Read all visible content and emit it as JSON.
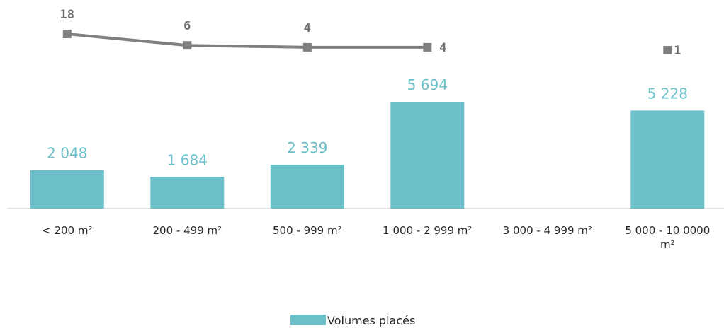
{
  "chart_data": {
    "type": "bar",
    "categories": [
      "< 200 m²",
      "200 - 499 m²",
      "500 - 999 m²",
      "1 000 - 2 999 m²",
      "3 000 - 4 999 m²",
      "5 000 - 10 0000 m²"
    ],
    "series": [
      {
        "name": "Volumes placés",
        "type": "bar",
        "values": [
          2048,
          1684,
          2339,
          5694,
          null,
          5228
        ],
        "labels": [
          "2 048",
          "1 684",
          "2 339",
          "5 694",
          "",
          "5 228"
        ],
        "color": "#6cc0ca"
      },
      {
        "type": "line",
        "values": [
          18,
          6,
          4,
          4,
          null,
          1
        ],
        "labels": [
          "18",
          "6",
          "4",
          "4",
          "",
          "1"
        ],
        "color": "#7f7f7f"
      }
    ],
    "legend": {
      "position": "bottom",
      "entries": [
        "Volumes placés"
      ]
    },
    "grid": false,
    "axis_line_color": "#d9d9d9"
  }
}
